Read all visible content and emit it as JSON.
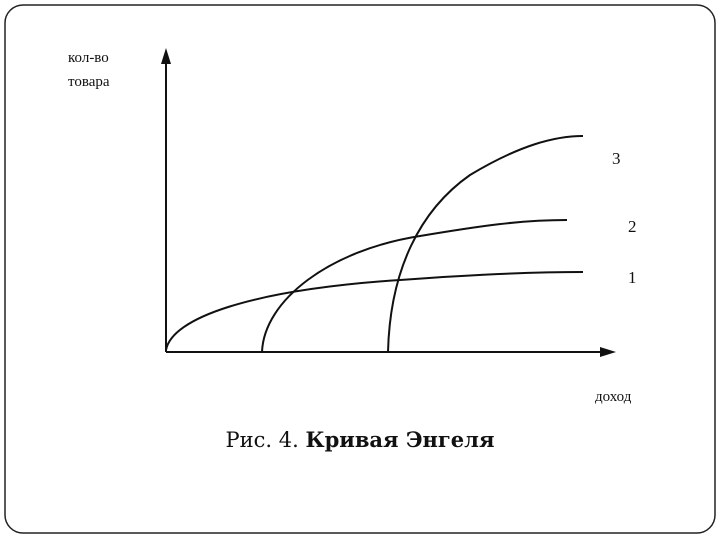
{
  "axes": {
    "y_label_lines": [
      "кол-во",
      "товара"
    ],
    "x_label": "доход"
  },
  "curves": [
    {
      "label": "1"
    },
    {
      "label": "2"
    },
    {
      "label": "3"
    }
  ],
  "caption": {
    "prefix": "Рис. 4.",
    "title": "Кривая Энгеля"
  }
}
